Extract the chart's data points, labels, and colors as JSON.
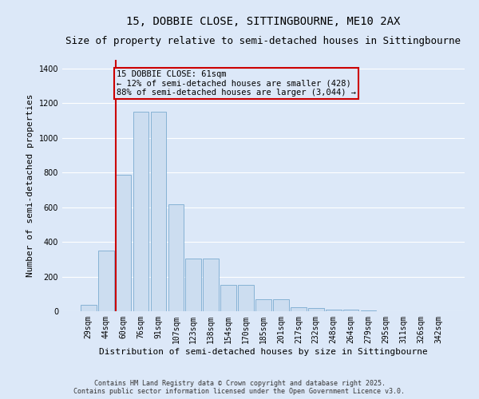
{
  "title": "15, DOBBIE CLOSE, SITTINGBOURNE, ME10 2AX",
  "subtitle": "Size of property relative to semi-detached houses in Sittingbourne",
  "xlabel": "Distribution of semi-detached houses by size in Sittingbourne",
  "ylabel": "Number of semi-detached properties",
  "categories": [
    "29sqm",
    "44sqm",
    "60sqm",
    "76sqm",
    "91sqm",
    "107sqm",
    "123sqm",
    "138sqm",
    "154sqm",
    "170sqm",
    "185sqm",
    "201sqm",
    "217sqm",
    "232sqm",
    "248sqm",
    "264sqm",
    "279sqm",
    "295sqm",
    "311sqm",
    "326sqm",
    "342sqm"
  ],
  "values": [
    35,
    350,
    785,
    1150,
    1150,
    615,
    305,
    305,
    150,
    150,
    70,
    70,
    25,
    20,
    10,
    10,
    3,
    2,
    1,
    1,
    0
  ],
  "bar_color": "#ccddf0",
  "bar_edge_color": "#7aaad0",
  "highlight_index": 2,
  "highlight_color": "#cc0000",
  "annotation_title": "15 DOBBIE CLOSE: 61sqm",
  "annotation_line1": "← 12% of semi-detached houses are smaller (428)",
  "annotation_line2": "88% of semi-detached houses are larger (3,044) →",
  "ylim": [
    0,
    1450
  ],
  "yticks": [
    0,
    200,
    400,
    600,
    800,
    1000,
    1200,
    1400
  ],
  "background_color": "#dce8f8",
  "grid_color": "#ffffff",
  "footer_line1": "Contains HM Land Registry data © Crown copyright and database right 2025.",
  "footer_line2": "Contains public sector information licensed under the Open Government Licence v3.0.",
  "title_fontsize": 10,
  "subtitle_fontsize": 9,
  "annotation_fontsize": 7.5,
  "axis_label_fontsize": 8,
  "tick_fontsize": 7,
  "footer_fontsize": 6
}
